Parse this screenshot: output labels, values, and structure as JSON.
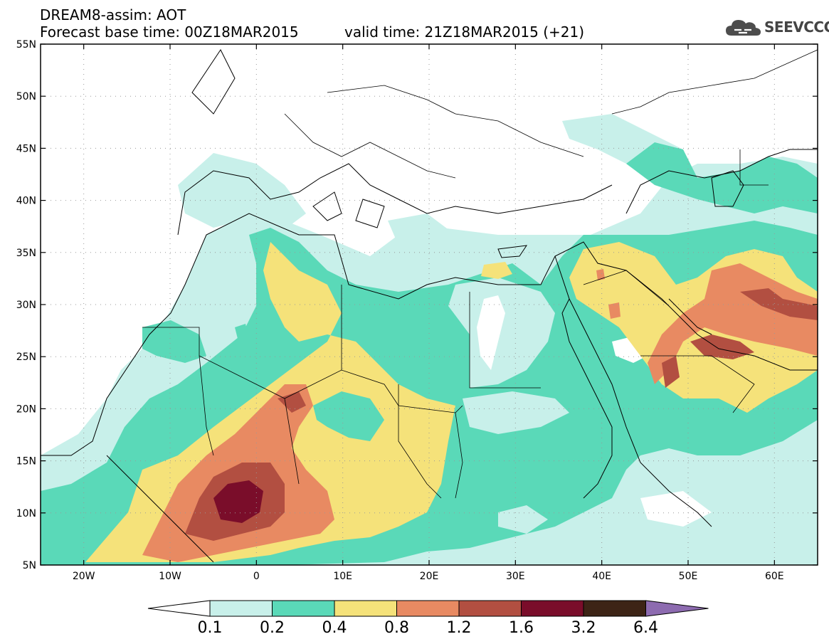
{
  "header": {
    "line1": "DREAM8-assim: AOT",
    "line2": "Forecast base time: 00Z18MAR2015",
    "valid": "valid time: 21Z18MAR2015 (+21)"
  },
  "logo": {
    "text": "SEEVCCC",
    "color": "#4d4d4d"
  },
  "map": {
    "lon_range": [
      -25,
      65
    ],
    "lat_range": [
      5,
      55
    ],
    "lon_ticks": [
      {
        "value": -20,
        "label": "20W"
      },
      {
        "value": -10,
        "label": "10W"
      },
      {
        "value": 0,
        "label": "0"
      },
      {
        "value": 10,
        "label": "10E"
      },
      {
        "value": 20,
        "label": "20E"
      },
      {
        "value": 30,
        "label": "30E"
      },
      {
        "value": 40,
        "label": "40E"
      },
      {
        "value": 50,
        "label": "50E"
      },
      {
        "value": 60,
        "label": "60E"
      }
    ],
    "lat_ticks": [
      {
        "value": 5,
        "label": "5N"
      },
      {
        "value": 10,
        "label": "10N"
      },
      {
        "value": 15,
        "label": "15N"
      },
      {
        "value": 20,
        "label": "20N"
      },
      {
        "value": 25,
        "label": "25N"
      },
      {
        "value": 30,
        "label": "30N"
      },
      {
        "value": 35,
        "label": "35N"
      },
      {
        "value": 40,
        "label": "40N"
      },
      {
        "value": 45,
        "label": "45N"
      },
      {
        "value": 50,
        "label": "50N"
      },
      {
        "value": 55,
        "label": "55N"
      }
    ],
    "grid": "dotted"
  },
  "colorbar": {
    "labels": [
      "0.1",
      "0.2",
      "0.4",
      "0.8",
      "1.2",
      "1.6",
      "3.2",
      "6.4"
    ],
    "colors": [
      "#ffffff",
      "#c8f0ea",
      "#5ad9b8",
      "#f5e27a",
      "#e88a62",
      "#b24f41",
      "#7a0d2a",
      "#3d2416",
      "#8d6bb0"
    ]
  }
}
